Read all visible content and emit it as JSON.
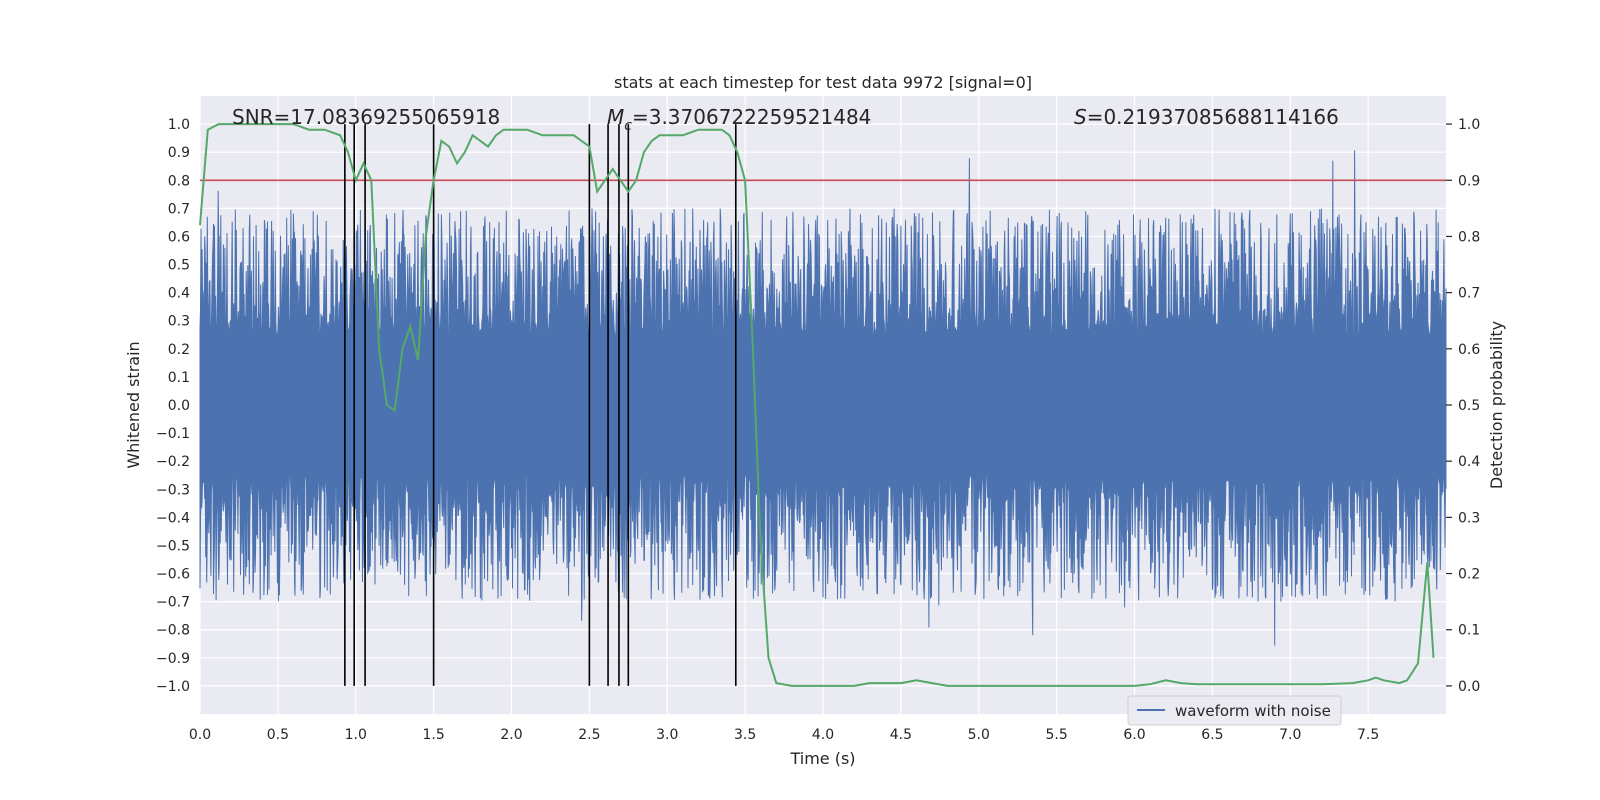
{
  "chart_data": {
    "type": "line",
    "title": "stats at each timestep for test data 9972 [signal=0]",
    "xlabel": "Time (s)",
    "ylabel_left": "Whitened strain",
    "ylabel_right": "Detection probability",
    "xlim": [
      0.0,
      8.0
    ],
    "ylim_left": [
      -1.1,
      1.1
    ],
    "ylim_right": [
      -0.05,
      1.05
    ],
    "x_ticks": [
      "0.0",
      "0.5",
      "1.0",
      "1.5",
      "2.0",
      "2.5",
      "3.0",
      "3.5",
      "4.0",
      "4.5",
      "5.0",
      "5.5",
      "6.0",
      "6.5",
      "7.0",
      "7.5"
    ],
    "x_tick_values": [
      0,
      0.5,
      1,
      1.5,
      2,
      2.5,
      3,
      3.5,
      4,
      4.5,
      5,
      5.5,
      6,
      6.5,
      7,
      7.5
    ],
    "y_left_ticks": [
      "1.0",
      "0.9",
      "0.8",
      "0.7",
      "0.6",
      "0.5",
      "0.4",
      "0.3",
      "0.2",
      "0.1",
      "0.0",
      "−0.1",
      "−0.2",
      "−0.3",
      "−0.4",
      "−0.5",
      "−0.6",
      "−0.7",
      "−0.8",
      "−0.9",
      "−1.0"
    ],
    "y_left_tick_values": [
      1.0,
      0.9,
      0.8,
      0.7,
      0.6,
      0.5,
      0.4,
      0.3,
      0.2,
      0.1,
      0.0,
      -0.1,
      -0.2,
      -0.3,
      -0.4,
      -0.5,
      -0.6,
      -0.7,
      -0.8,
      -0.9,
      -1.0
    ],
    "y_right_ticks": [
      "1.0",
      "0.9",
      "0.8",
      "0.7",
      "0.6",
      "0.5",
      "0.4",
      "0.3",
      "0.2",
      "0.1",
      "0.0"
    ],
    "y_right_tick_values": [
      1.0,
      0.9,
      0.8,
      0.7,
      0.6,
      0.5,
      0.4,
      0.3,
      0.2,
      0.1,
      0.0
    ],
    "annotations": [
      {
        "label": "SNR=17.08369255065918",
        "x": 0.2
      },
      {
        "label": "Mc=3.3706722259521484",
        "x": 2.6
      },
      {
        "label": "S=0.21937085688114166",
        "x": 5.6
      }
    ],
    "threshold": {
      "value": 0.9,
      "color": "#c44e52"
    },
    "vertical_lines": [
      0.93,
      0.99,
      1.06,
      1.5,
      2.5,
      2.62,
      2.69,
      2.75,
      3.44
    ],
    "detection_probability": {
      "name": "detection probability",
      "color": "#55a868",
      "x": [
        0.0,
        0.05,
        0.12,
        0.2,
        0.3,
        0.4,
        0.5,
        0.6,
        0.7,
        0.75,
        0.8,
        0.9,
        0.95,
        1.0,
        1.05,
        1.1,
        1.15,
        1.2,
        1.25,
        1.3,
        1.35,
        1.4,
        1.45,
        1.5,
        1.55,
        1.6,
        1.65,
        1.7,
        1.75,
        1.8,
        1.85,
        1.9,
        1.95,
        2.0,
        2.1,
        2.2,
        2.3,
        2.4,
        2.45,
        2.5,
        2.55,
        2.6,
        2.65,
        2.7,
        2.75,
        2.8,
        2.85,
        2.9,
        2.95,
        3.0,
        3.1,
        3.2,
        3.3,
        3.35,
        3.4,
        3.45,
        3.5,
        3.55,
        3.6,
        3.65,
        3.7,
        3.8,
        4.0,
        4.2,
        4.3,
        4.4,
        4.5,
        4.6,
        4.7,
        4.8,
        4.9,
        5.0,
        5.2,
        5.4,
        5.6,
        5.8,
        6.0,
        6.1,
        6.2,
        6.3,
        6.4,
        6.6,
        6.8,
        7.0,
        7.2,
        7.4,
        7.5,
        7.55,
        7.6,
        7.7,
        7.75,
        7.82,
        7.88,
        7.92
      ],
      "y": [
        0.82,
        0.99,
        1.0,
        1.0,
        1.0,
        1.0,
        1.0,
        1.0,
        0.99,
        0.99,
        0.99,
        0.98,
        0.95,
        0.9,
        0.93,
        0.9,
        0.6,
        0.5,
        0.49,
        0.6,
        0.64,
        0.58,
        0.8,
        0.9,
        0.97,
        0.96,
        0.93,
        0.95,
        0.98,
        0.97,
        0.96,
        0.98,
        0.99,
        0.99,
        0.99,
        0.98,
        0.98,
        0.98,
        0.97,
        0.96,
        0.88,
        0.9,
        0.92,
        0.9,
        0.88,
        0.9,
        0.95,
        0.97,
        0.98,
        0.98,
        0.98,
        0.99,
        0.99,
        0.99,
        0.98,
        0.95,
        0.9,
        0.6,
        0.25,
        0.05,
        0.005,
        0.0,
        0.0,
        0.0,
        0.005,
        0.005,
        0.005,
        0.01,
        0.005,
        0.0,
        0.0,
        0.0,
        0.0,
        0.0,
        0.0,
        0.0,
        0.0,
        0.003,
        0.01,
        0.005,
        0.003,
        0.003,
        0.003,
        0.003,
        0.003,
        0.005,
        0.01,
        0.015,
        0.01,
        0.005,
        0.01,
        0.04,
        0.22,
        0.05
      ]
    },
    "waveform": {
      "name": "waveform with noise",
      "color": "#4c72b0",
      "x_range": [
        0.0,
        8.0
      ],
      "y_range": [
        -1.0,
        1.0
      ],
      "note": "dense noise trace with peaks around +/-0.5 to +/-1.0"
    },
    "legend": {
      "labels": [
        "waveform with noise"
      ],
      "loc": "lower-right"
    }
  }
}
